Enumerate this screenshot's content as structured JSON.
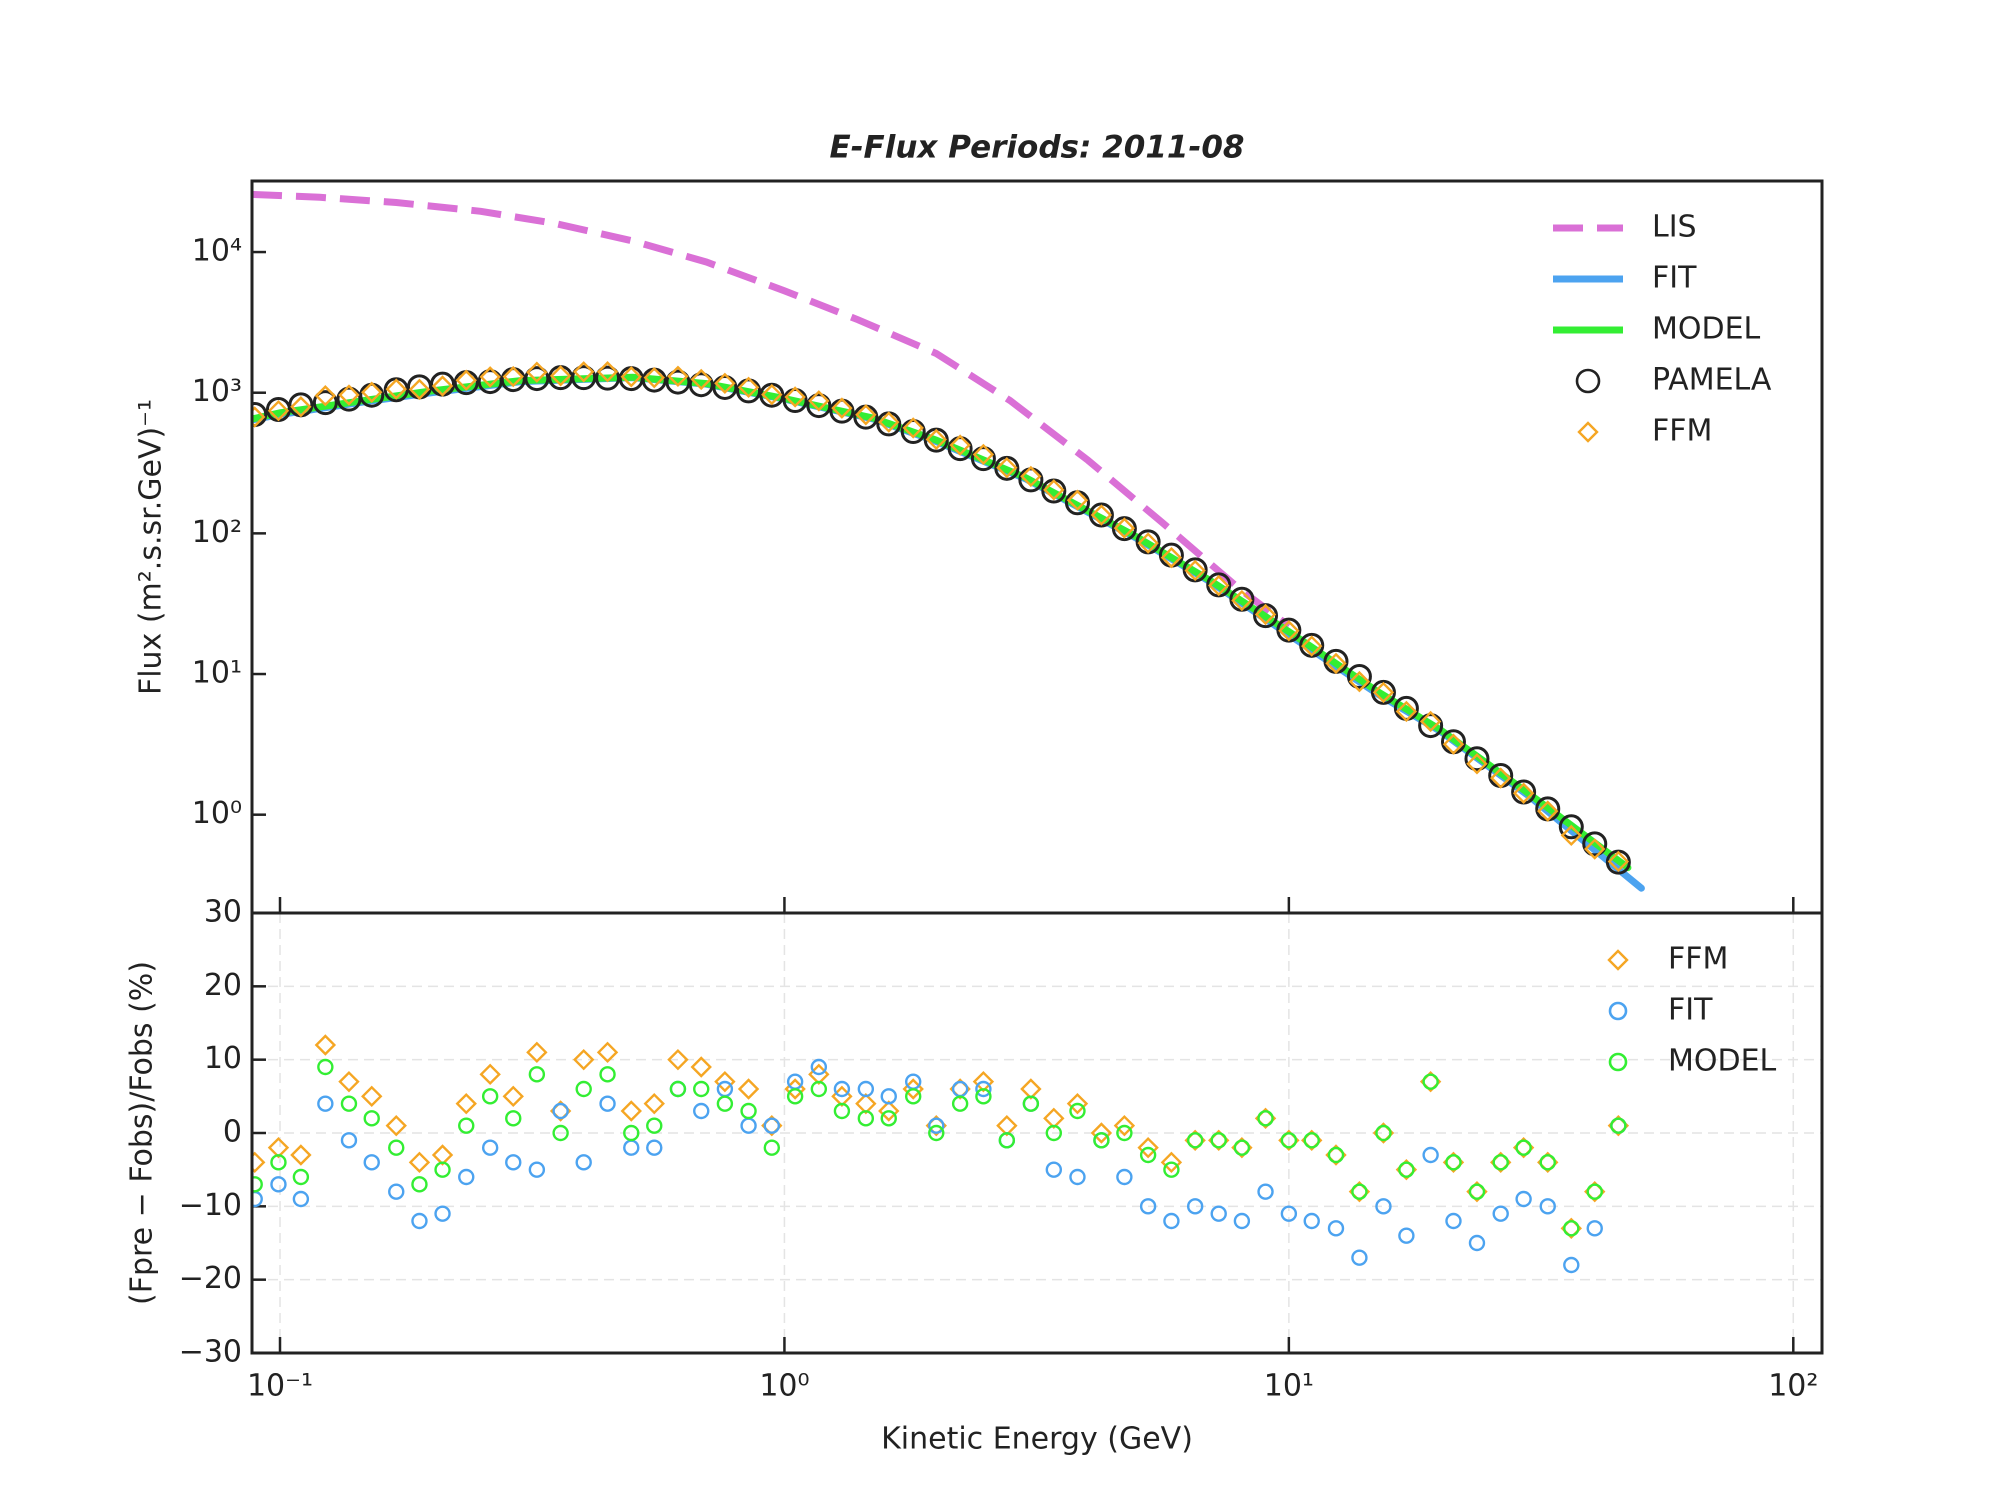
{
  "chart_data": [
    {
      "type": "line",
      "title": "E-Flux Periods: 2011-08",
      "ylabel": "Flux (m².s.sr.GeV)⁻¹",
      "xscale": "log",
      "yscale": "log",
      "xlim": [
        0.088,
        114
      ],
      "ylim": [
        0.2,
        32000
      ],
      "yticks": [
        {
          "value": 1,
          "label": "10⁰"
        },
        {
          "value": 10,
          "label": "10¹"
        },
        {
          "value": 100,
          "label": "10²"
        },
        {
          "value": 1000,
          "label": "10³"
        },
        {
          "value": 10000,
          "label": "10⁴"
        }
      ],
      "legend": "upper right",
      "x": [
        0.0891,
        0.0993,
        0.11,
        0.123,
        0.137,
        0.152,
        0.17,
        0.189,
        0.21,
        0.234,
        0.261,
        0.29,
        0.323,
        0.36,
        0.4,
        0.446,
        0.497,
        0.552,
        0.615,
        0.684,
        0.762,
        0.849,
        0.944,
        1.05,
        1.17,
        1.3,
        1.45,
        1.61,
        1.8,
        2.0,
        2.23,
        2.48,
        2.76,
        3.08,
        3.42,
        3.81,
        4.25,
        4.72,
        5.26,
        5.85,
        6.52,
        7.26,
        8.07,
        8.99,
        10.0,
        11.1,
        12.4,
        13.8,
        15.4,
        17.1,
        19.1,
        21.2,
        23.6,
        26.3,
        29.2,
        32.6,
        36.3,
        40.4,
        45.0
      ],
      "series": [
        {
          "name": "LIS",
          "color": "#da70d6",
          "style": "dashed",
          "x": [
            0.088,
            0.12,
            0.17,
            0.25,
            0.35,
            0.5,
            0.7,
            1,
            1.4,
            2,
            2.8,
            4,
            5.6,
            8,
            10
          ],
          "values": [
            25700,
            24500,
            22500,
            19500,
            16000,
            12000,
            8500,
            5300,
            3300,
            1900,
            880,
            330,
            120,
            40,
            22
          ]
        },
        {
          "name": "FIT",
          "color": "#4ca3f0",
          "style": "solid",
          "x": [
            0.088,
            0.1,
            0.15,
            0.2,
            0.3,
            0.5,
            0.7,
            1,
            1.5,
            2,
            3,
            5,
            7,
            10,
            15,
            20,
            30,
            50
          ],
          "values": [
            640,
            700,
            870,
            1000,
            1200,
            1280,
            1150,
            900,
            650,
            450,
            245,
            92,
            45,
            19,
            7.2,
            3.9,
            1.35,
            0.3
          ]
        },
        {
          "name": "MODEL",
          "color": "#33ee33",
          "style": "solid",
          "x": [
            0.088,
            0.1,
            0.15,
            0.2,
            0.3,
            0.5,
            0.7,
            1,
            1.5,
            2,
            3,
            5,
            7,
            10,
            15,
            20,
            30,
            47
          ],
          "values": [
            650,
            720,
            890,
            1030,
            1220,
            1290,
            1160,
            910,
            660,
            460,
            250,
            94,
            46,
            20,
            7.5,
            4.0,
            1.4,
            0.42
          ]
        },
        {
          "name": "PAMELA",
          "color": "#222222",
          "marker": "circle",
          "values": [
            700,
            760,
            820,
            850,
            900,
            960,
            1050,
            1100,
            1150,
            1180,
            1200,
            1240,
            1260,
            1280,
            1280,
            1270,
            1260,
            1230,
            1190,
            1140,
            1090,
            1030,
            960,
            880,
            810,
            740,
            670,
            600,
            530,
            460,
            400,
            340,
            290,
            240,
            200,
            165,
            135,
            108,
            87,
            70,
            55,
            43,
            34,
            26,
            20.5,
            16,
            12.3,
            9.6,
            7.4,
            5.7,
            4.3,
            3.3,
            2.5,
            1.9,
            1.45,
            1.1,
            0.82,
            0.62,
            0.46
          ]
        },
        {
          "name": "FFM",
          "color": "#f5a623",
          "marker": "diamond",
          "values": [
            672,
            745,
            795,
            952,
            963,
            1008,
            1061,
            1056,
            1116,
            1227,
            1296,
            1302,
            1399,
            1318,
            1408,
            1410,
            1298,
            1279,
            1309,
            1243,
            1166,
            1092,
            970,
            933,
            875,
            777,
            697,
            618,
            562,
            465,
            424,
            364,
            293,
            254,
            204,
            172,
            135,
            109,
            85.3,
            67.2,
            54.5,
            42.6,
            33.3,
            26.5,
            20.3,
            15.8,
            11.9,
            8.83,
            7.4,
            5.42,
            4.6,
            3.17,
            2.3,
            1.82,
            1.42,
            1.06,
            0.713,
            0.57,
            0.465
          ]
        }
      ]
    },
    {
      "type": "scatter",
      "xlabel": "Kinetic Energy (GeV)",
      "ylabel": "(Fpre − Fobs)/Fobs (%)",
      "xscale": "log",
      "xlim": [
        0.088,
        114
      ],
      "ylim": [
        -30,
        30
      ],
      "xticks": [
        {
          "value": 0.1,
          "label": "10⁻¹"
        },
        {
          "value": 1,
          "label": "10⁰"
        },
        {
          "value": 10,
          "label": "10¹"
        },
        {
          "value": 100,
          "label": "10²"
        }
      ],
      "yticks": [
        {
          "value": -30,
          "label": "−30"
        },
        {
          "value": -20,
          "label": "−20"
        },
        {
          "value": -10,
          "label": "−10"
        },
        0,
        10,
        20,
        30
      ],
      "grid": true,
      "legend": "upper right",
      "x": [
        0.0891,
        0.0993,
        0.11,
        0.123,
        0.137,
        0.152,
        0.17,
        0.189,
        0.21,
        0.234,
        0.261,
        0.29,
        0.323,
        0.36,
        0.4,
        0.446,
        0.497,
        0.552,
        0.615,
        0.684,
        0.762,
        0.849,
        0.944,
        1.05,
        1.17,
        1.3,
        1.45,
        1.61,
        1.8,
        2.0,
        2.23,
        2.48,
        2.76,
        3.08,
        3.42,
        3.81,
        4.25,
        4.72,
        5.26,
        5.85,
        6.52,
        7.26,
        8.07,
        8.99,
        10.0,
        11.1,
        12.4,
        13.8,
        15.4,
        17.1,
        19.1,
        21.2,
        23.6,
        26.3,
        29.2,
        32.6,
        36.3,
        40.4,
        45.0
      ],
      "series": [
        {
          "name": "FFM",
          "color": "#f5a623",
          "marker": "diamond",
          "values": [
            -4,
            -2,
            -3,
            12,
            7,
            5,
            1,
            -4,
            -3,
            4,
            8,
            5,
            11,
            3,
            10,
            11,
            3,
            4,
            10,
            9,
            7,
            6,
            1,
            6,
            8,
            5,
            4,
            3,
            6,
            1,
            6,
            7,
            1,
            6,
            2,
            4,
            0,
            1,
            -2,
            -4,
            -1,
            -1,
            -2,
            2,
            -1,
            -1,
            -3,
            -8,
            0,
            -5,
            7,
            -4,
            -8,
            -4,
            -2,
            -4,
            -13,
            -8,
            1
          ]
        },
        {
          "name": "FIT",
          "color": "#4ca3f0",
          "marker": "circle",
          "values": [
            -9,
            -7,
            -9,
            4,
            -1,
            -4,
            -8,
            -12,
            -11,
            -6,
            -2,
            -4,
            -5,
            3,
            -4,
            4,
            -2,
            -2,
            6,
            3,
            6,
            1,
            1,
            7,
            9,
            6,
            6,
            5,
            7,
            1,
            6,
            6,
            -1,
            4,
            -5,
            -6,
            -1,
            -6,
            -10,
            -12,
            -10,
            -11,
            -12,
            -8,
            -11,
            -12,
            -13,
            -17,
            -10,
            -14,
            -3,
            -12,
            -15,
            -11,
            -9,
            -10,
            -18,
            -13,
            1
          ]
        },
        {
          "name": "MODEL",
          "color": "#33ee33",
          "marker": "circle",
          "values": [
            -7,
            -4,
            -6,
            9,
            4,
            2,
            -2,
            -7,
            -5,
            1,
            5,
            2,
            8,
            0,
            6,
            8,
            0,
            1,
            6,
            6,
            4,
            3,
            -2,
            5,
            6,
            3,
            2,
            2,
            5,
            0,
            4,
            5,
            -1,
            4,
            0,
            3,
            -1,
            0,
            -3,
            -5,
            -1,
            -1,
            -2,
            2,
            -1,
            -1,
            -3,
            -8,
            0,
            -5,
            7,
            -4,
            -8,
            -4,
            -2,
            -4,
            -13,
            -8,
            1
          ]
        }
      ]
    }
  ]
}
